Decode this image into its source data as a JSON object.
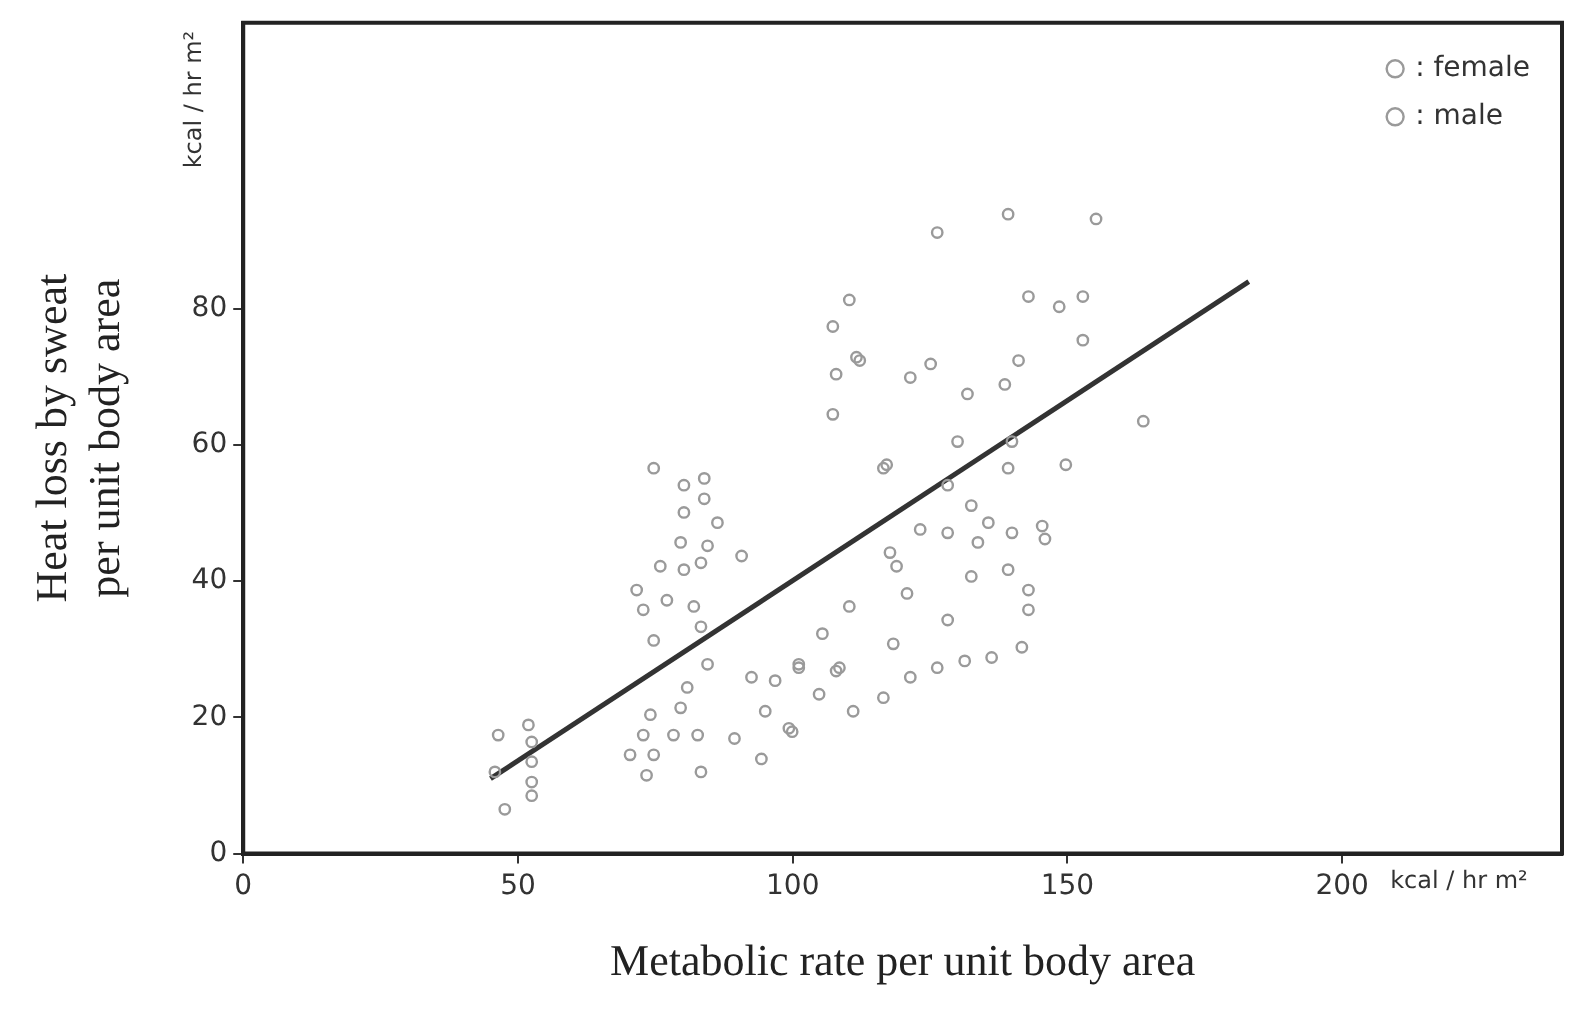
{
  "chart_data": {
    "type": "scatter",
    "xlabel": "Metabolic rate per unit body area",
    "ylabel": "Heat loss by sweat\nper unit body area",
    "annotations": [
      "kcal / hr m²",
      "kcal / hr m²"
    ],
    "xlim": [
      0,
      240
    ],
    "xticks": [
      0,
      50,
      100,
      150,
      200
    ],
    "ylim": [
      0,
      122
    ],
    "yticks": [
      0,
      20,
      40,
      60,
      80
    ],
    "grid": false,
    "legend": "top right",
    "marker": "circle",
    "series": [
      {
        "name": ": female",
        "color": "#9a9a9a",
        "x": [
          46.4,
          51.9,
          52.5,
          52.5,
          52.5,
          52.5,
          47.6,
          45.8,
          74.7,
          80.2,
          83.9,
          80.2,
          83.9,
          86.3,
          79.6,
          84.5,
          75.9,
          80.2,
          83.3,
          71.6,
          77.1,
          82.0,
          72.8,
          74.7,
          83.3,
          84.5,
          80.8,
          74.1,
          79.6,
          72.8,
          78.3,
          70.4,
          74.7,
          73.4,
          83.3,
          82.7,
          90.7,
          92.5,
          89.4,
          94.3,
          96.8,
          95.0,
          99.3
        ],
        "values": [
          17.4,
          18.9,
          16.4,
          13.5,
          10.5,
          8.5,
          6.5,
          12,
          56.6,
          54.1,
          55.1,
          50.1,
          52.1,
          48.6,
          45.7,
          45.2,
          42.2,
          41.7,
          42.7,
          38.7,
          37.2,
          36.3,
          35.8,
          31.3,
          33.3,
          27.8,
          24.4,
          20.4,
          21.4,
          17.4,
          17.4,
          14.5,
          14.5,
          11.5,
          12.0,
          17.4,
          43.7,
          25.9,
          16.9,
          13.9,
          25.4,
          20.9,
          18.4
        ]
      },
      {
        "name": ": male",
        "color": "#9a9a9a",
        "x": [
          99.9,
          101.1,
          105.4,
          104.8,
          107.9,
          110.3,
          111,
          116.5,
          118.3,
          118.9,
          116.5,
          107.3,
          107.9,
          107.3,
          110.3,
          112.2,
          117.1,
          126.3,
          139.2,
          155.2,
          142.9,
          148.5,
          152.8,
          152.8,
          111.6,
          125.1,
          121.4,
          141.1,
          138.6,
          131.8,
          163.8,
          130,
          139.9,
          139.2,
          149.7,
          128.2,
          132.5,
          135.6,
          128.2,
          139.9,
          145.4,
          145.9,
          133.7,
          123.2,
          117.7,
          120.8,
          132.5,
          139.2,
          142.9,
          142.9,
          128.2,
          141.7,
          136.2,
          131.3,
          126.3,
          121.4,
          108.5,
          101.1
        ],
        "values": [
          17.9,
          27.8,
          32.3,
          23.4,
          26.8,
          36.3,
          20.9,
          22.9,
          30.8,
          42.2,
          56.6,
          64.5,
          70.4,
          77.4,
          81.3,
          72.4,
          57.1,
          91.2,
          93.9,
          93.2,
          81.8,
          80.3,
          81.8,
          75.4,
          72.9,
          71.9,
          69.9,
          72.4,
          68.9,
          67.5,
          63.5,
          60.5,
          60.5,
          56.6,
          57.1,
          54.1,
          51.1,
          48.6,
          47.1,
          47.1,
          48.1,
          46.2,
          45.7,
          47.6,
          44.2,
          38.2,
          40.7,
          41.7,
          38.7,
          35.8,
          34.3,
          30.3,
          28.8,
          28.3,
          27.3,
          25.9,
          27.3,
          27.3
        ]
      },
      {
        "type": "line",
        "marker": "none",
        "color": "#333333",
        "x": [
          45,
          183
        ],
        "values": [
          11,
          84
        ]
      }
    ]
  }
}
